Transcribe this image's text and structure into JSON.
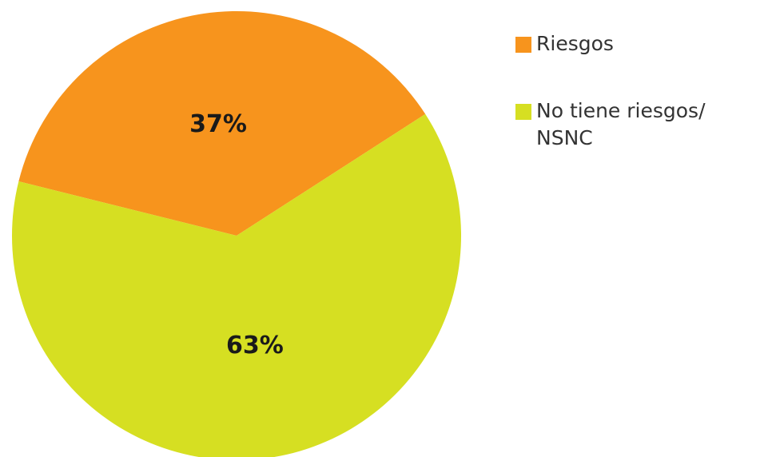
{
  "chart_data": {
    "type": "pie",
    "categories": [
      "Riesgos",
      "No tiene riesgos/ NSNC"
    ],
    "values": [
      37,
      63
    ],
    "value_labels": [
      "37%",
      "63%"
    ],
    "colors": [
      "#f7941d",
      "#d6df22"
    ]
  }
}
